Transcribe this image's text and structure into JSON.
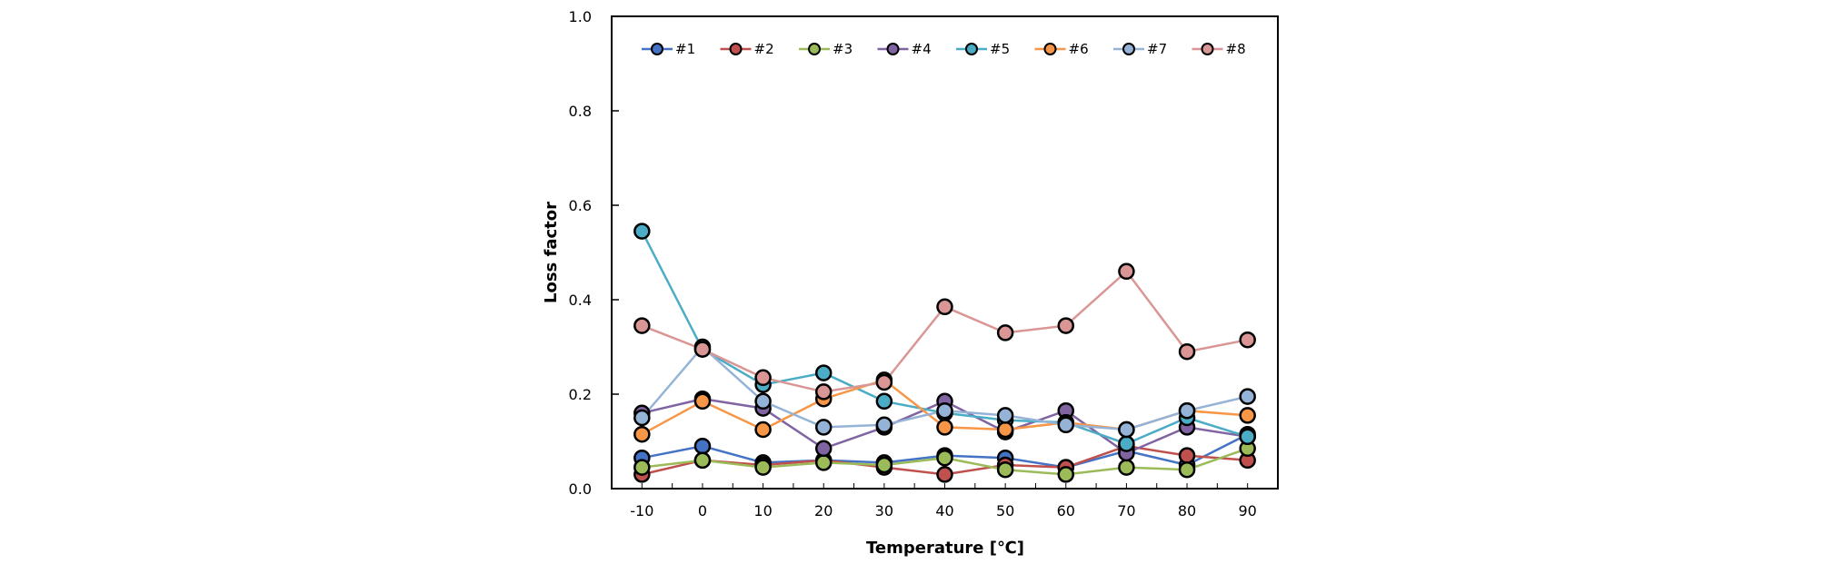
{
  "chart_data": {
    "type": "line",
    "title": "",
    "xlabel": "Temperature [℃]",
    "ylabel": "Loss factor",
    "x": [
      -10,
      0,
      10,
      20,
      30,
      40,
      50,
      60,
      70,
      80,
      90
    ],
    "xticks": [
      "-10",
      "0",
      "10",
      "20",
      "30",
      "40",
      "50",
      "60",
      "70",
      "80",
      "90"
    ],
    "ylim": [
      0,
      1.0
    ],
    "yticks": [
      "0.0",
      "0.2",
      "0.4",
      "0.6",
      "0.8",
      "1.0"
    ],
    "grid": false,
    "legend_position": "top",
    "series": [
      {
        "name": "#1",
        "color": "#4472c4",
        "values": [
          0.065,
          0.09,
          0.055,
          0.06,
          0.055,
          0.07,
          0.065,
          0.045,
          0.08,
          0.05,
          0.115
        ]
      },
      {
        "name": "#2",
        "color": "#c0504d",
        "values": [
          0.03,
          0.06,
          0.05,
          0.06,
          0.045,
          0.03,
          0.05,
          0.045,
          0.09,
          0.07,
          0.06
        ]
      },
      {
        "name": "#3",
        "color": "#9bbb59",
        "values": [
          0.045,
          0.06,
          0.045,
          0.055,
          0.05,
          0.065,
          0.04,
          0.03,
          0.045,
          0.04,
          0.085
        ]
      },
      {
        "name": "#4",
        "color": "#8064a2",
        "values": [
          0.16,
          0.19,
          0.17,
          0.085,
          0.13,
          0.185,
          0.12,
          0.165,
          0.075,
          0.13,
          0.11
        ]
      },
      {
        "name": "#5",
        "color": "#4bacc6",
        "values": [
          0.545,
          0.295,
          0.22,
          0.245,
          0.185,
          0.16,
          0.145,
          0.14,
          0.095,
          0.15,
          0.11
        ]
      },
      {
        "name": "#6",
        "color": "#f79646",
        "values": [
          0.115,
          0.185,
          0.125,
          0.19,
          0.23,
          0.13,
          0.125,
          0.14,
          0.125,
          0.165,
          0.155
        ]
      },
      {
        "name": "#7",
        "color": "#95b3d7",
        "values": [
          0.15,
          0.3,
          0.185,
          0.13,
          0.135,
          0.165,
          0.155,
          0.135,
          0.125,
          0.165,
          0.195
        ]
      },
      {
        "name": "#8",
        "color": "#d99694",
        "values": [
          0.345,
          0.295,
          0.235,
          0.205,
          0.225,
          0.385,
          0.33,
          0.345,
          0.46,
          0.29,
          0.315
        ]
      }
    ]
  }
}
